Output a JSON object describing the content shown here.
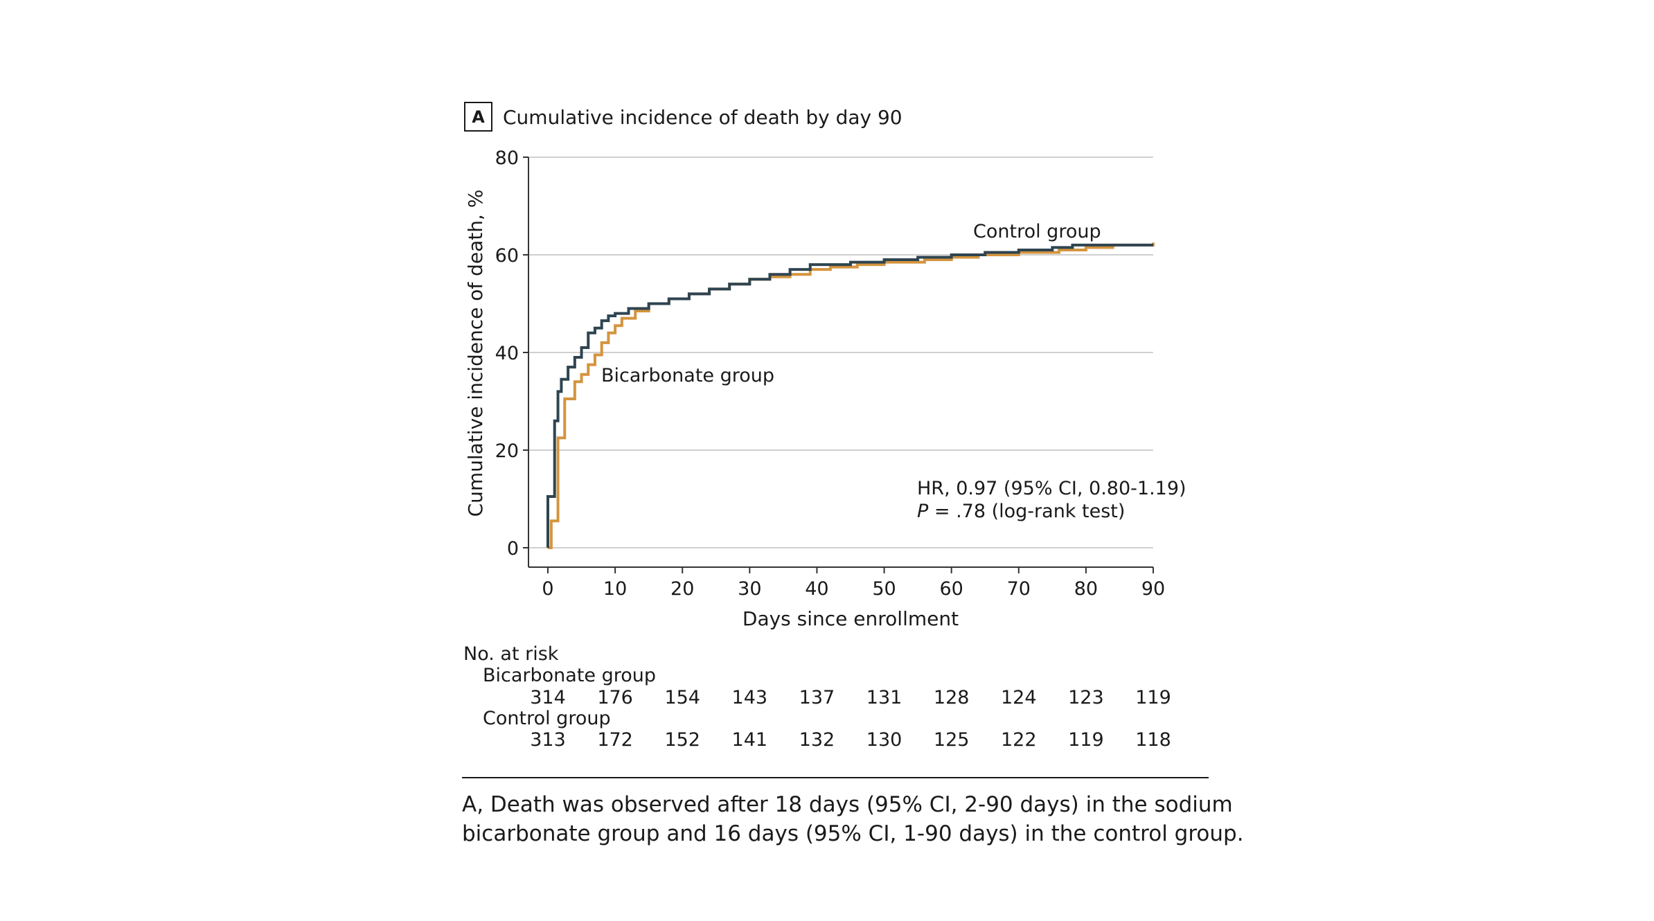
{
  "chart_data": {
    "type": "line",
    "panel_letter": "A",
    "title": "Cumulative incidence of death by day 90",
    "xlabel": "Days since enrollment",
    "ylabel": "Cumulative incidence of death, %",
    "xlim": [
      0,
      90
    ],
    "ylim": [
      0,
      80
    ],
    "xticks": [
      0,
      10,
      20,
      30,
      40,
      50,
      60,
      70,
      80,
      90
    ],
    "yticks": [
      0,
      20,
      40,
      60,
      80
    ],
    "grid": "horizontal",
    "colors": {
      "control": "#2f4450",
      "bicarbonate": "#d4943e",
      "grid": "#d0d0d0",
      "axis": "#333333"
    },
    "series": [
      {
        "name": "Control group",
        "key": "control",
        "x": [
          0,
          0,
          1,
          1.5,
          2,
          3,
          4,
          5,
          6,
          7,
          8,
          9,
          10,
          12,
          15,
          18,
          21,
          24,
          27,
          30,
          33,
          36,
          39,
          45,
          50,
          55,
          60,
          65,
          70,
          75,
          78,
          90
        ],
        "y": [
          0,
          10.5,
          26,
          32,
          34.5,
          37,
          39,
          41,
          44,
          45,
          46.5,
          47.5,
          48,
          49,
          50,
          51,
          52,
          53,
          54,
          55,
          56,
          57,
          58,
          58.5,
          59,
          59.5,
          60,
          60.5,
          61,
          61.5,
          62,
          62
        ]
      },
      {
        "name": "Bicarbonate group",
        "key": "bicarbonate",
        "x": [
          0,
          0.5,
          1.5,
          2.5,
          4,
          5,
          6,
          7,
          8,
          9,
          10,
          11,
          13,
          15,
          18,
          21,
          24,
          27,
          30,
          33,
          36,
          39,
          42,
          46,
          50,
          56,
          60,
          64,
          70,
          76,
          80,
          84,
          90
        ],
        "y": [
          0,
          5.5,
          22.5,
          30.5,
          34,
          35.5,
          37.5,
          39.5,
          42,
          44,
          45.5,
          47,
          48.5,
          50,
          51,
          52,
          53,
          54,
          55,
          55.5,
          56,
          57,
          57.5,
          58,
          58.5,
          59,
          59.5,
          60,
          60.5,
          61,
          61.5,
          62,
          62.5
        ]
      }
    ],
    "line_labels": {
      "control": "Control group",
      "bicarbonate": "Bicarbonate group"
    },
    "annotation": {
      "line1": "HR, 0.97 (95% CI, 0.80-1.19)",
      "line2_p": "P",
      "line2_rest": " = .78 (log-rank test)"
    },
    "risk_table": {
      "header": "No. at risk",
      "days": [
        0,
        10,
        20,
        30,
        40,
        50,
        60,
        70,
        80,
        90
      ],
      "rows": [
        {
          "label": "Bicarbonate group",
          "values": [
            314,
            176,
            154,
            143,
            137,
            131,
            128,
            124,
            123,
            119
          ]
        },
        {
          "label": "Control group",
          "values": [
            313,
            172,
            152,
            141,
            132,
            130,
            125,
            122,
            119,
            118
          ]
        }
      ]
    }
  },
  "caption": {
    "line1": "A, Death was observed after 18 days (95% CI, 2-90 days) in the sodium",
    "line2": "bicarbonate group and 16 days (95% CI, 1-90 days) in the control group."
  }
}
